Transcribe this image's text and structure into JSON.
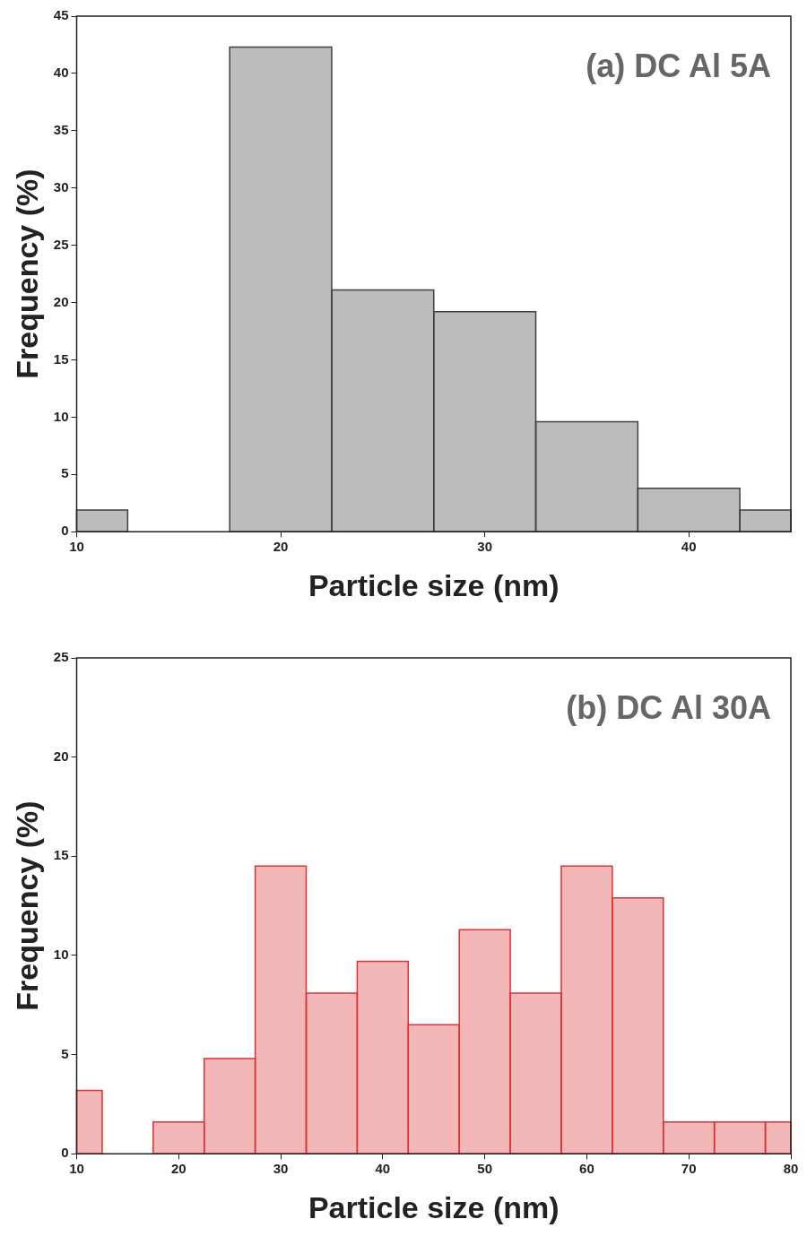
{
  "chart_data": [
    {
      "type": "histogram",
      "xlabel": "Particle size (nm)",
      "ylabel": "Frequency (%)",
      "annotations": [
        "(a) DC Al 5A"
      ],
      "bins": [
        10,
        12.5,
        17.5,
        22.5,
        27.5,
        32.5,
        37.5,
        42.5,
        45
      ],
      "values": [
        1.9,
        0,
        42.3,
        21.1,
        19.2,
        9.6,
        3.8,
        1.9
      ],
      "color": "#404040",
      "xlim": [
        10,
        45
      ],
      "xticks": [
        10,
        20,
        30,
        40
      ],
      "ylim": [
        0,
        45
      ],
      "yticks": [
        0,
        5,
        10,
        15,
        20,
        25,
        30,
        35,
        40,
        45
      ],
      "grid": false
    },
    {
      "type": "histogram",
      "xlabel": "Particle size (nm)",
      "ylabel": "Frequency (%)",
      "annotations": [
        "(b) DC Al 30A"
      ],
      "bins": [
        10,
        12.5,
        17.5,
        22.5,
        27.5,
        32.5,
        37.5,
        42.5,
        47.5,
        52.5,
        57.5,
        62.5,
        67.5,
        72.5,
        77.5,
        80
      ],
      "values": [
        3.2,
        0,
        1.6,
        4.8,
        14.5,
        8.1,
        9.7,
        6.5,
        11.3,
        8.1,
        14.5,
        12.9,
        1.6,
        1.6,
        1.6
      ],
      "color": "#e03030",
      "xlim": [
        10,
        80
      ],
      "xticks": [
        10,
        20,
        30,
        40,
        50,
        60,
        70,
        80
      ],
      "ylim": [
        0,
        25
      ],
      "yticks": [
        0,
        5,
        10,
        15,
        20,
        25
      ],
      "grid": false
    }
  ]
}
